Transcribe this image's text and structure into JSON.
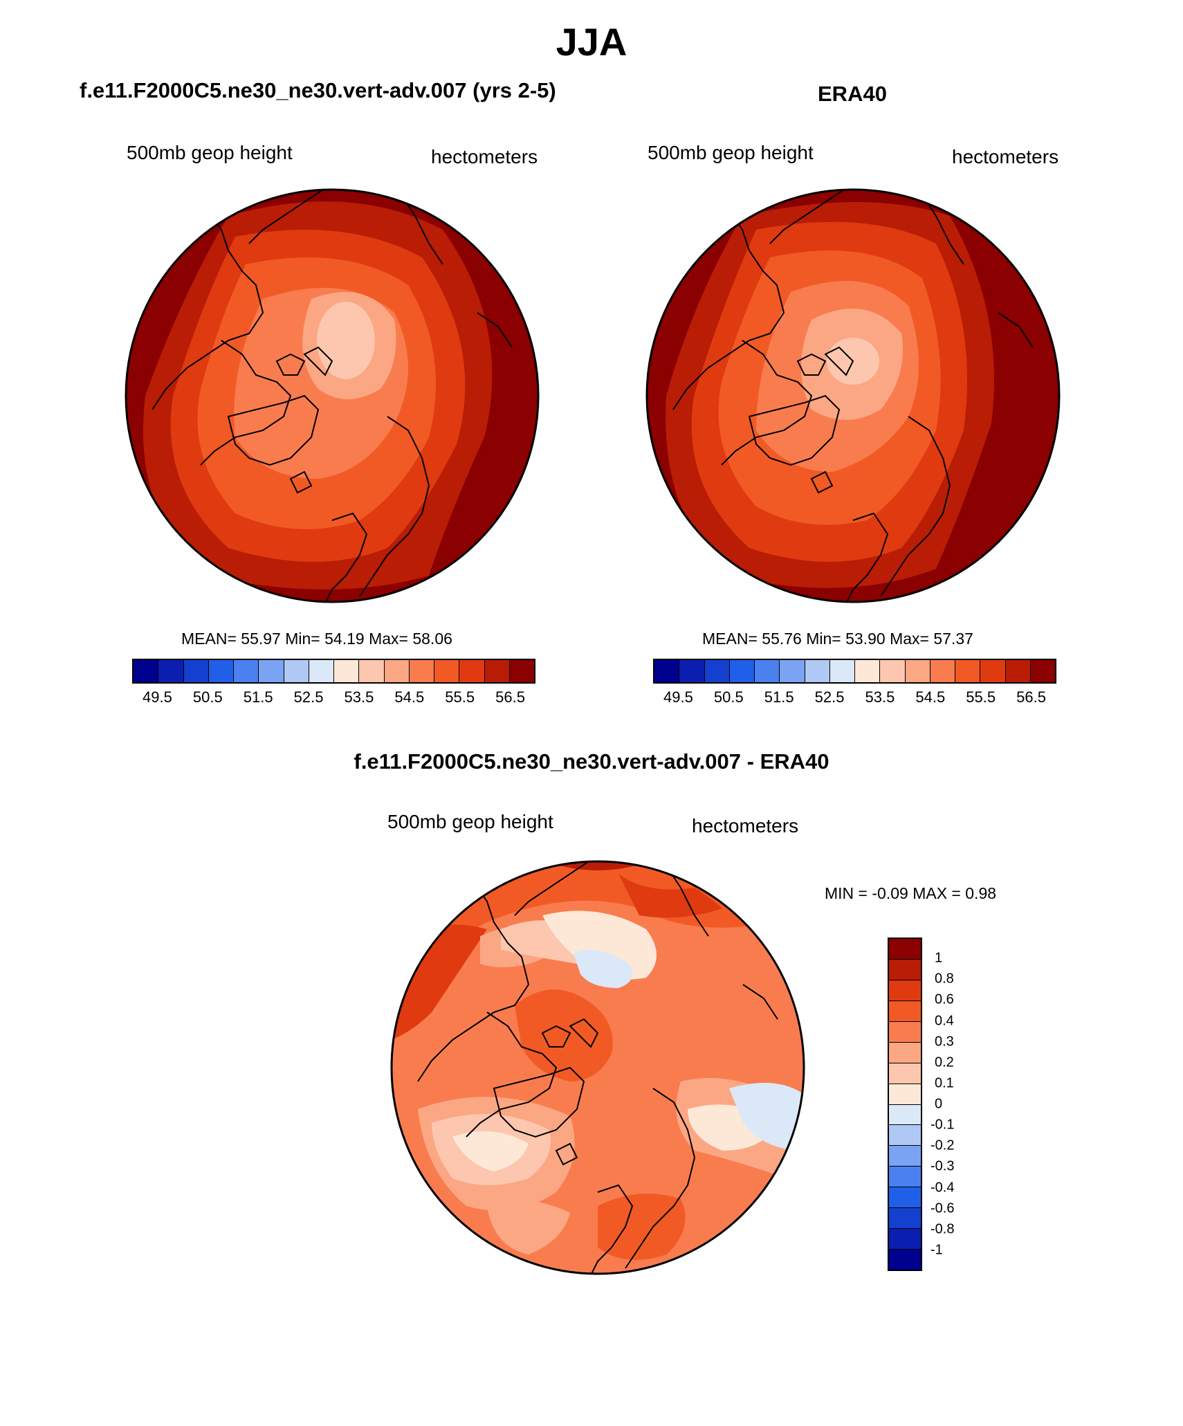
{
  "figure": {
    "title": "JJA"
  },
  "panels": [
    {
      "title": "f.e11.F2000C5.ne30_ne30.vert-adv.007 (yrs 2-5)",
      "left_label": "500mb geop height",
      "right_label": "hectometers",
      "stats": {
        "mean_label": "MEAN=",
        "mean": "55.97",
        "min_label": "Min=",
        "min": "54.19",
        "max_label": "Max=",
        "max": "58.06"
      }
    },
    {
      "title": "ERA40",
      "left_label": "500mb geop height",
      "right_label": "hectometers",
      "stats": {
        "mean_label": "MEAN=",
        "mean": "55.76",
        "min_label": "Min=",
        "min": "53.90",
        "max_label": "Max=",
        "max": "57.37"
      }
    },
    {
      "title": "f.e11.F2000C5.ne30_ne30.vert-adv.007 - ERA40",
      "left_label": "500mb geop height",
      "right_label": "hectometers",
      "stats": {
        "min_label": "MIN =",
        "min": "-0.09",
        "max_label": "MAX =",
        "max": "0.98"
      }
    }
  ],
  "colorbars": {
    "absolute": {
      "tick_labels": [
        "49.5",
        "50.5",
        "51.5",
        "52.5",
        "53.5",
        "54.5",
        "55.5",
        "56.5"
      ],
      "colors": [
        "#00008f",
        "#0a1fb0",
        "#1440d0",
        "#2060e8",
        "#4a80f0",
        "#7aa3f3",
        "#b0c8f4",
        "#dbe8f7",
        "#fde8d8",
        "#fcc7ae",
        "#fba784",
        "#f97c4f",
        "#f25a25",
        "#e03a10",
        "#b91d06",
        "#8b0000"
      ]
    },
    "difference": {
      "tick_labels": [
        "1",
        "0.8",
        "0.6",
        "0.4",
        "0.3",
        "0.2",
        "0.1",
        "0",
        "-0.1",
        "-0.2",
        "-0.3",
        "-0.4",
        "-0.6",
        "-0.8",
        "-1"
      ],
      "colors": [
        "#8b0000",
        "#b91d06",
        "#e03a10",
        "#f25a25",
        "#f97c4f",
        "#fba784",
        "#fcc7ae",
        "#fde8d8",
        "#dbe8f7",
        "#b0c8f4",
        "#7aa3f3",
        "#4a80f0",
        "#2060e8",
        "#1440d0",
        "#0a1fb0",
        "#00008f"
      ]
    }
  }
}
